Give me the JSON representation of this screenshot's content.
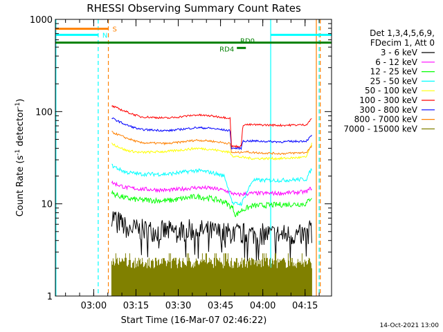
{
  "chart_data": {
    "type": "line",
    "title": "RHESSI Observing Summary Count Rates",
    "ylabel_parts": [
      "Count Rate (s",
      "-1",
      " detector",
      "-1",
      ")"
    ],
    "xlabel": "Start Time (16-Mar-07 02:46:22)",
    "yscale": "log",
    "ylim": [
      1,
      1000
    ],
    "xlim_minutes": [
      0,
      98
    ],
    "y_ticks": [
      {
        "value": 1,
        "label": "1"
      },
      {
        "value": 10,
        "label": "10"
      },
      {
        "value": 100,
        "label": "100"
      },
      {
        "value": 1000,
        "label": "1000"
      }
    ],
    "x_ticks": [
      {
        "minute": 13.6,
        "label": "03:00"
      },
      {
        "minute": 28.6,
        "label": "03:15"
      },
      {
        "minute": 43.6,
        "label": "03:30"
      },
      {
        "minute": 58.6,
        "label": "03:45"
      },
      {
        "minute": 73.6,
        "label": "04:00"
      },
      {
        "minute": 88.6,
        "label": "04:15"
      }
    ],
    "legend_header": [
      "Det 1,3,4,5,6,9,",
      "FDecim 1, Att 0"
    ],
    "series": [
      {
        "name": "3 - 6 keV",
        "color": "#000000",
        "data": [
          [
            20,
            7.5
          ],
          [
            25,
            5.5
          ],
          [
            30,
            5.2
          ],
          [
            40,
            5.0
          ],
          [
            50,
            5.2
          ],
          [
            60,
            4.8
          ],
          [
            70,
            4.7
          ],
          [
            80,
            4.6
          ],
          [
            89,
            4.6
          ],
          [
            91,
            6
          ]
        ],
        "noise": 0.28
      },
      {
        "name": "6 - 12 keV",
        "color": "#ff00ff",
        "data": [
          [
            20,
            17
          ],
          [
            25,
            15
          ],
          [
            30,
            14.5
          ],
          [
            40,
            14
          ],
          [
            50,
            15
          ],
          [
            55,
            14.8
          ],
          [
            60,
            14
          ],
          [
            63,
            13
          ],
          [
            64,
            12.5
          ],
          [
            70,
            13
          ],
          [
            80,
            13
          ],
          [
            89,
            13.5
          ],
          [
            91,
            15
          ]
        ],
        "noise": 0.05
      },
      {
        "name": "12 - 25 keV",
        "color": "#00ff00",
        "data": [
          [
            20,
            13
          ],
          [
            25,
            11.5
          ],
          [
            30,
            11
          ],
          [
            40,
            10.8
          ],
          [
            50,
            12
          ],
          [
            55,
            11.5
          ],
          [
            60,
            10.5
          ],
          [
            63,
            9
          ],
          [
            64,
            7.5
          ],
          [
            66,
            8.5
          ],
          [
            70,
            9.5
          ],
          [
            80,
            9.8
          ],
          [
            89,
            10
          ],
          [
            91,
            12
          ]
        ],
        "noise": 0.07
      },
      {
        "name": "25 - 50 keV",
        "color": "#00ffff",
        "data": [
          [
            20,
            26
          ],
          [
            25,
            22
          ],
          [
            30,
            21
          ],
          [
            40,
            21
          ],
          [
            50,
            23
          ],
          [
            55,
            22
          ],
          [
            60,
            20
          ],
          [
            63,
            10
          ],
          [
            66,
            10
          ],
          [
            70,
            18
          ],
          [
            80,
            18
          ],
          [
            89,
            18.5
          ],
          [
            91,
            24
          ]
        ],
        "noise": 0.05
      },
      {
        "name": "50 - 100 keV",
        "color": "#ffff00",
        "data": [
          [
            20,
            45
          ],
          [
            25,
            38
          ],
          [
            30,
            36
          ],
          [
            40,
            37
          ],
          [
            50,
            40
          ],
          [
            55,
            39
          ],
          [
            60,
            37
          ],
          [
            62,
            36
          ],
          [
            63,
            33
          ],
          [
            66,
            32
          ],
          [
            70,
            31
          ],
          [
            80,
            31
          ],
          [
            89,
            32
          ],
          [
            91,
            45
          ]
        ],
        "noise": 0.03
      },
      {
        "name": "100 - 300 keV",
        "color": "#ff0000",
        "data": [
          [
            20,
            115
          ],
          [
            25,
            100
          ],
          [
            30,
            88
          ],
          [
            40,
            85
          ],
          [
            50,
            92
          ],
          [
            55,
            90
          ],
          [
            62,
            85
          ],
          [
            62.5,
            42
          ],
          [
            66,
            42
          ],
          [
            66.5,
            72
          ],
          [
            70,
            72
          ],
          [
            80,
            71
          ],
          [
            89,
            72
          ],
          [
            91,
            84
          ]
        ],
        "noise": 0.025
      },
      {
        "name": "300 - 800 keV",
        "color": "#0000ff",
        "data": [
          [
            20,
            85
          ],
          [
            25,
            72
          ],
          [
            30,
            64
          ],
          [
            40,
            62
          ],
          [
            50,
            67
          ],
          [
            55,
            66
          ],
          [
            62,
            62
          ],
          [
            62.5,
            40
          ],
          [
            66,
            40
          ],
          [
            66.5,
            48
          ],
          [
            70,
            48
          ],
          [
            80,
            47
          ],
          [
            89,
            48
          ],
          [
            91,
            55
          ]
        ],
        "noise": 0.025
      },
      {
        "name": "800 - 7000 keV",
        "color": "#ff8000",
        "data": [
          [
            20,
            60
          ],
          [
            25,
            52
          ],
          [
            30,
            46
          ],
          [
            40,
            45
          ],
          [
            50,
            49
          ],
          [
            55,
            48
          ],
          [
            62,
            45
          ],
          [
            62.5,
            36
          ],
          [
            66,
            36
          ],
          [
            66.5,
            37
          ],
          [
            70,
            36
          ],
          [
            80,
            35
          ],
          [
            89,
            36
          ],
          [
            91,
            42
          ]
        ],
        "noise": 0.025
      },
      {
        "name": "7000 - 15000 keV",
        "color": "#808000",
        "data": [
          [
            20,
            2.2
          ],
          [
            91,
            2.2
          ]
        ],
        "noise": 0.0
      }
    ],
    "vertical_markers": [
      {
        "minute": 0.2,
        "color": "#00ffff",
        "style": "solid"
      },
      {
        "minute": 15.2,
        "color": "#00ffff",
        "style": "dashed"
      },
      {
        "minute": 18.8,
        "color": "#ff8000",
        "style": "dashed"
      },
      {
        "minute": 76.4,
        "color": "#00ffff",
        "style": "solid"
      },
      {
        "minute": 92.6,
        "color": "#ff8000",
        "style": "solid"
      },
      {
        "minute": 93.6,
        "color": "#00ffff",
        "style": "dashed"
      },
      {
        "minute": 94.0,
        "color": "#ff8000",
        "style": "dashed"
      }
    ],
    "flag_bars": [
      {
        "label": "S",
        "color": "#ff8000",
        "start": 0,
        "end": 18.8,
        "level": 790
      },
      {
        "label": "N",
        "color": "#00ffff",
        "start": 0,
        "end": 15.2,
        "level": 680
      },
      {
        "label": "",
        "color": "#00ffff",
        "start": 76.4,
        "end": 98,
        "level": 680
      },
      {
        "label": "RD0",
        "color": "#008000",
        "start": 0,
        "end": 98,
        "level": 560
      },
      {
        "label": "RD4",
        "color": "#008000",
        "start": 64.4,
        "end": 67.6,
        "level": 490
      }
    ],
    "timestamp": "14-Oct-2021 13:00"
  }
}
